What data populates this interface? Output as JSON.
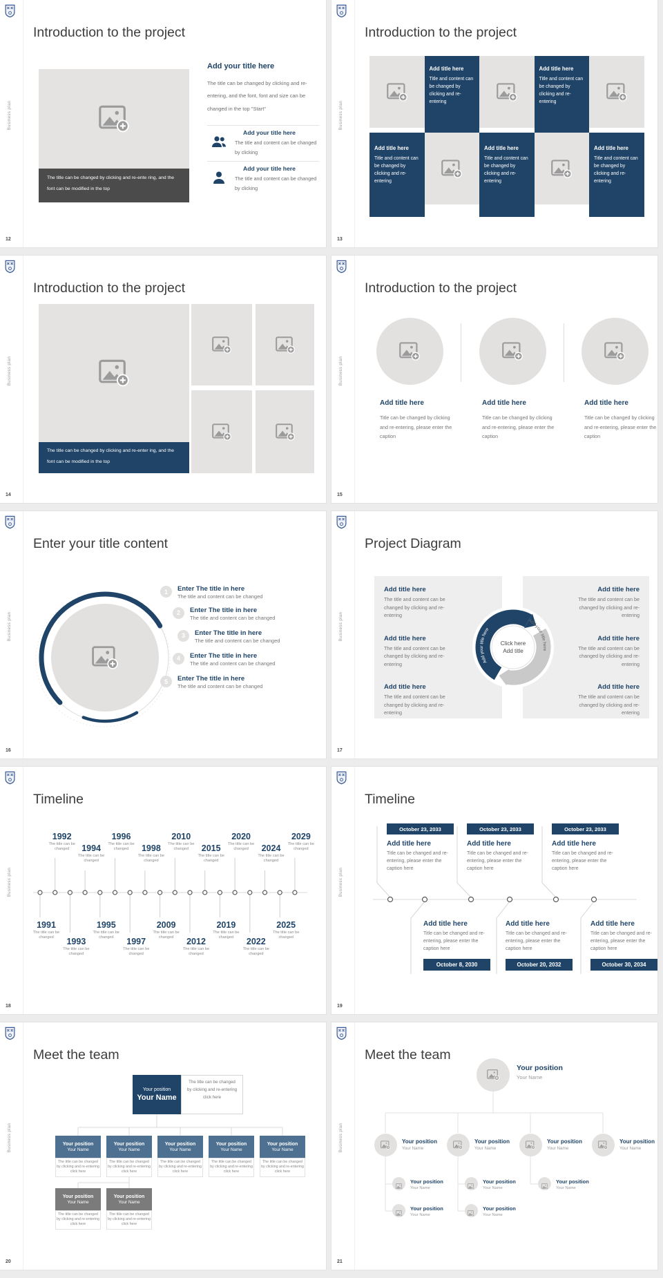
{
  "ui": {
    "sidebar_text": "Business plan"
  },
  "colors": {
    "accent": "#1f4468",
    "slate": "#4e7191",
    "gray_box": "#7b7b7b"
  },
  "s12": {
    "page": "12",
    "title": "Introduction to the project",
    "caption": "The title can be changed by clicking and re-ente ring, and the font can be modified in the top",
    "heading": "Add your title here",
    "body": "The title can be changed by clicking and re-entering, and the font, font and size can be changed in the top \"Start\"",
    "item1_title": "Add your title here",
    "item1_body": "The title and content can be changed by clicking",
    "item2_title": "Add your title here",
    "item2_body": "The title and content can be changed by clicking"
  },
  "s13": {
    "page": "13",
    "title": "Introduction to the project",
    "cell_title": "Add title here",
    "cell_body": "Title and content can be changed by clicking and re-entering"
  },
  "s14": {
    "page": "14",
    "title": "Introduction to the project",
    "caption": "The title can be changed by clicking and re-enter ing, and the font can be modified in the top"
  },
  "s15": {
    "page": "15",
    "title": "Introduction to the project",
    "col_title": "Add title here",
    "col_body": "Title can be changed by clicking and re-entering, please enter the caption"
  },
  "s16": {
    "page": "16",
    "title": "Enter your title content",
    "nums": [
      "1",
      "2",
      "3",
      "4",
      "5"
    ],
    "item_title": "Enter The title in here",
    "item_body": "The title and content can be changed"
  },
  "s17": {
    "page": "17",
    "title": "Project Diagram",
    "item_title": "Add title here",
    "item_body": "The title and content can be changed by clicking and re-entering",
    "center_l1": "Click here",
    "center_l2": "Add title",
    "arc_label_left": "Add your title here",
    "arc_label_right": "Add your title here"
  },
  "s18": {
    "page": "18",
    "title": "Timeline",
    "node_caption": "The title can be changed",
    "top_years": [
      "1992",
      "1994",
      "1996",
      "1998",
      "2010",
      "2015",
      "2020",
      "2024",
      "2029"
    ],
    "bottom_years": [
      "1991",
      "1993",
      "1995",
      "1997",
      "2009",
      "2012",
      "2019",
      "2022",
      "2025"
    ]
  },
  "s19": {
    "page": "19",
    "title": "Timeline",
    "card_title": "Add title here",
    "card_body": "Title can be changed and re-entering, please enter the caption here",
    "top_dates": [
      "October 23, 2033",
      "October 23, 2033",
      "October 23, 2033"
    ],
    "bottom_dates": [
      "October 8, 2030",
      "October 20, 2032",
      "October 30, 2034"
    ]
  },
  "s20": {
    "page": "20",
    "title": "Meet the team",
    "position": "Your position",
    "name": "Your Name",
    "root_note": "The title can be changed by clicking and re-entering click here",
    "member_note": "The title can be changed by clicking and re-entering click here"
  },
  "s21": {
    "page": "21",
    "title": "Meet the team",
    "position": "Your position",
    "name": "Your Name"
  }
}
